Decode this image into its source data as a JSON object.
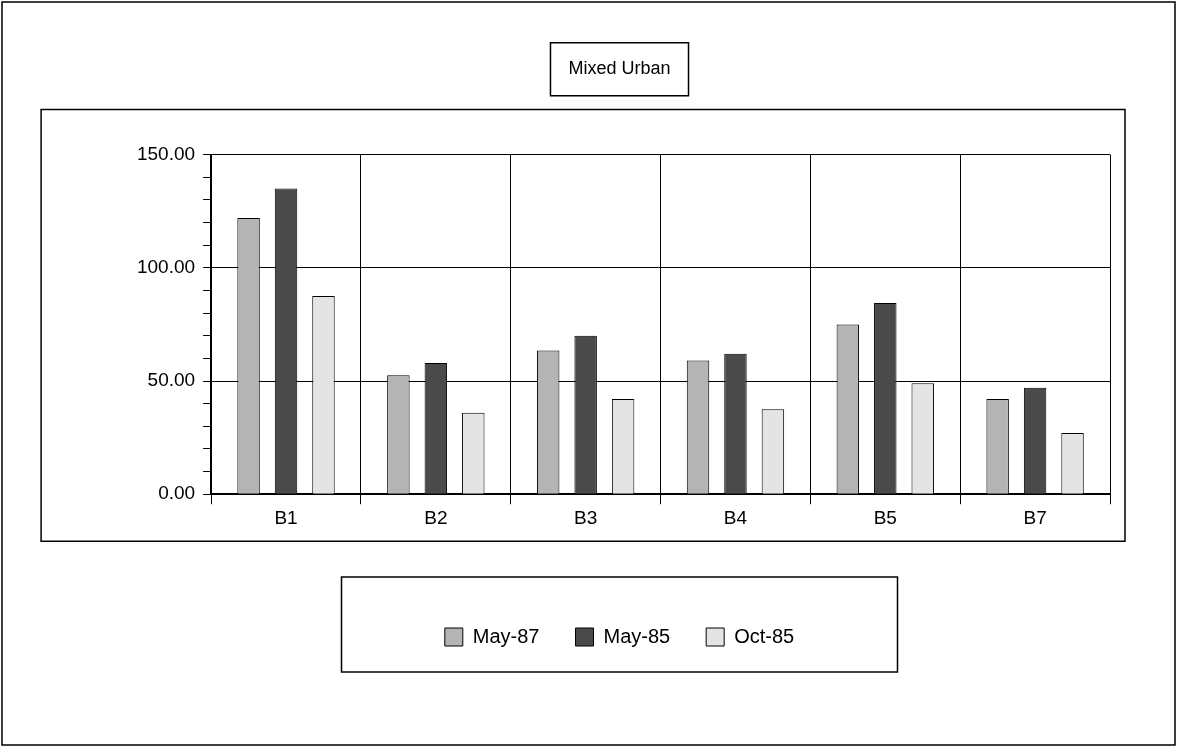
{
  "chart_data": {
    "type": "bar",
    "title": "Mixed Urban",
    "categories": [
      "B1",
      "B2",
      "B3",
      "B4",
      "B5",
      "B7"
    ],
    "series": [
      {
        "name": "May-87",
        "color": "#b4b4b4",
        "values": [
          122,
          52.5,
          63.5,
          59,
          75,
          42
        ]
      },
      {
        "name": "May-85",
        "color": "#4a4a4a",
        "values": [
          135,
          58,
          70,
          62,
          84.5,
          47
        ]
      },
      {
        "name": "Oct-85",
        "color": "#e4e4e4",
        "values": [
          87.5,
          36,
          42,
          37.5,
          49,
          27
        ]
      }
    ],
    "ylim": [
      0,
      150
    ],
    "yticks": [
      {
        "value": 0,
        "label": "0.00"
      },
      {
        "value": 10,
        "label": null
      },
      {
        "value": 20,
        "label": null
      },
      {
        "value": 30,
        "label": null
      },
      {
        "value": 40,
        "label": null
      },
      {
        "value": 50,
        "label": "50.00"
      },
      {
        "value": 60,
        "label": null
      },
      {
        "value": 70,
        "label": null
      },
      {
        "value": 80,
        "label": null
      },
      {
        "value": 90,
        "label": null
      },
      {
        "value": 100,
        "label": "100.00"
      },
      {
        "value": 110,
        "label": null
      },
      {
        "value": 120,
        "label": null
      },
      {
        "value": 130,
        "label": null
      },
      {
        "value": 140,
        "label": null
      },
      {
        "value": 150,
        "label": "150.00"
      }
    ],
    "grid": true,
    "legend": "bottom"
  }
}
